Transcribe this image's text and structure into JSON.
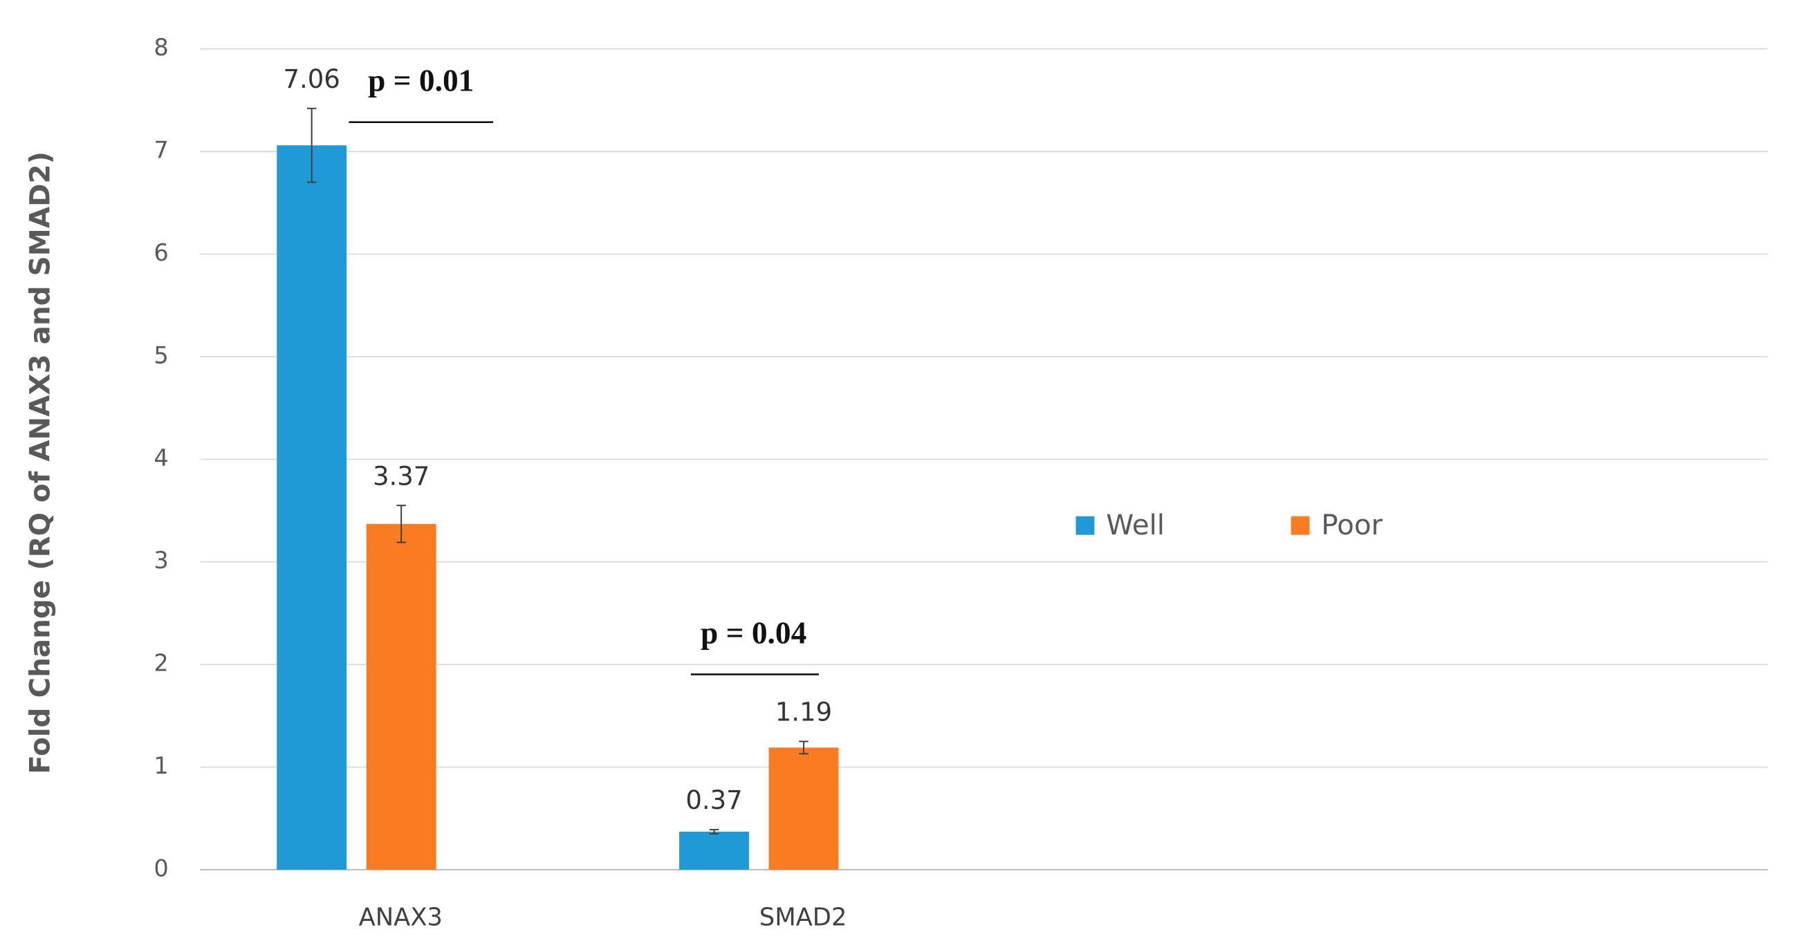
{
  "chart_data": {
    "type": "bar",
    "y_label": "Fold Change (RQ of ANAX3 and SMAD2)",
    "categories": [
      "ANAX3",
      "SMAD2"
    ],
    "series": [
      {
        "name": "Well",
        "color": "#1f9ad6",
        "values": [
          7.06,
          0.37
        ],
        "errors": [
          0.36,
          0.02
        ]
      },
      {
        "name": "Poor",
        "color": "#f97b22",
        "values": [
          3.37,
          1.19
        ],
        "errors": [
          0.18,
          0.06
        ]
      }
    ],
    "ylim": [
      0,
      8
    ],
    "yticks": [
      0,
      1,
      2,
      3,
      4,
      5,
      6,
      7,
      8
    ],
    "grid": true,
    "legend": "right",
    "annotations": [
      "p = 0.01",
      "p = 0.04"
    ]
  }
}
